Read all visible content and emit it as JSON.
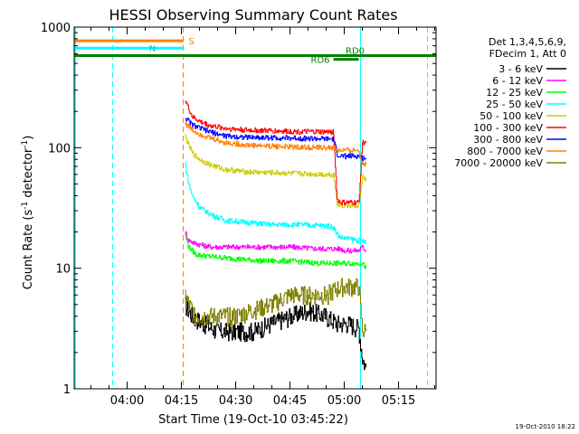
{
  "chart_data": {
    "type": "line",
    "title": "HESSI Observing Summary Count Rates",
    "xlabel": "Start Time (19-Oct-10 03:45:22)",
    "ylabel": "Count Rate (s",
    "ylabel_sup1": "-1",
    "ylabel_mid": " detector",
    "ylabel_sup2": "-1",
    "ylabel_end": ")",
    "y_scale": "log",
    "ylim": [
      1,
      1000
    ],
    "xlim": [
      "03:45:22",
      "05:25:22"
    ],
    "x_minutes_from": "03:45",
    "xlim_minutes": [
      0.37,
      100.37
    ],
    "x_ticks": [
      {
        "label": "04:00",
        "min": 15
      },
      {
        "label": "04:15",
        "min": 30
      },
      {
        "label": "04:30",
        "min": 45
      },
      {
        "label": "04:45",
        "min": 60
      },
      {
        "label": "05:00",
        "min": 75
      },
      {
        "label": "05:15",
        "min": 90
      }
    ],
    "y_ticks": [
      {
        "label": "1",
        "value": 1
      },
      {
        "label": "10",
        "value": 10
      },
      {
        "label": "100",
        "value": 100
      },
      {
        "label": "1000",
        "value": 1000
      }
    ],
    "legend": {
      "placement": "right",
      "header_line1": "Det 1,3,4,5,6,9,",
      "header_line2": "FDecim 1, Att 0"
    },
    "series": [
      {
        "name": "3 - 6 keV",
        "color": "#000000",
        "x": [
          31,
          33,
          36,
          40,
          45,
          50,
          55,
          60,
          65,
          70,
          73,
          76,
          79,
          80,
          81
        ],
        "y": [
          5,
          4,
          3.5,
          3,
          3,
          3,
          3.5,
          4,
          4.5,
          4,
          3.5,
          3.5,
          3.2,
          1.8,
          1.5
        ]
      },
      {
        "name": "6 - 12 keV",
        "color": "#ff00ff",
        "x": [
          31,
          32,
          34,
          38,
          45,
          52,
          60,
          68,
          74,
          75,
          76,
          79,
          80,
          81
        ],
        "y": [
          20,
          17,
          16,
          15,
          15,
          15,
          15,
          14.5,
          14.5,
          14,
          14,
          14,
          15,
          14
        ]
      },
      {
        "name": "12 - 25 keV",
        "color": "#00ff00",
        "x": [
          31,
          32,
          34,
          38,
          45,
          52,
          60,
          68,
          74,
          75,
          76,
          79,
          80,
          81
        ],
        "y": [
          19,
          15,
          13,
          12.5,
          12,
          11.5,
          11.5,
          11,
          11,
          11,
          11,
          11,
          11,
          10
        ]
      },
      {
        "name": "25 - 50 keV",
        "color": "#00ffff",
        "x": [
          31,
          32,
          33,
          35,
          38,
          42,
          48,
          55,
          62,
          70,
          72,
          73,
          74,
          79,
          80,
          81
        ],
        "y": [
          75,
          50,
          40,
          32,
          28,
          25,
          24,
          23,
          23,
          22.5,
          22,
          19,
          18,
          17,
          17,
          16
        ]
      },
      {
        "name": "50 - 100 keV",
        "color": "#cccc00",
        "x": [
          31,
          32,
          33,
          35,
          38,
          42,
          48,
          55,
          62,
          70,
          72,
          73,
          74,
          79,
          80,
          81
        ],
        "y": [
          125,
          105,
          90,
          80,
          72,
          66,
          63,
          62,
          61,
          60,
          60,
          35,
          33,
          33,
          57,
          55
        ]
      },
      {
        "name": "100 - 300 keV",
        "color": "#ff0000",
        "x": [
          31,
          32,
          33,
          35,
          38,
          42,
          48,
          55,
          62,
          70,
          72,
          73,
          74,
          79,
          80,
          81
        ],
        "y": [
          250,
          210,
          180,
          165,
          152,
          145,
          140,
          138,
          136,
          135,
          135,
          37,
          35,
          35,
          110,
          110
        ]
      },
      {
        "name": "300 - 800 keV",
        "color": "#0000ff",
        "x": [
          31,
          32,
          33,
          35,
          38,
          42,
          48,
          55,
          62,
          70,
          72,
          73,
          74,
          79,
          80,
          81
        ],
        "y": [
          178,
          165,
          155,
          145,
          135,
          125,
          122,
          121,
          120,
          118,
          118,
          88,
          85,
          85,
          82,
          82
        ]
      },
      {
        "name": "800 - 7000 keV",
        "color": "#ff8000",
        "x": [
          31,
          32,
          33,
          35,
          38,
          42,
          48,
          55,
          62,
          70,
          72,
          73,
          74,
          79,
          80,
          81
        ],
        "y": [
          160,
          150,
          140,
          130,
          120,
          110,
          105,
          103,
          101,
          100,
          100,
          95,
          95,
          95,
          75,
          72
        ]
      },
      {
        "name": "7000 - 20000 keV",
        "color": "#808000",
        "x": [
          31,
          32,
          34,
          38,
          45,
          50,
          55,
          60,
          65,
          70,
          74,
          76,
          79,
          80,
          81
        ],
        "y": [
          6,
          5,
          4,
          4,
          4,
          4.5,
          5,
          6,
          6,
          6,
          7,
          7,
          7,
          3,
          3
        ]
      }
    ],
    "flags": [
      {
        "label": "S",
        "color": "#ff8000",
        "y": 770,
        "x_end": 30.5
      },
      {
        "label": "N",
        "color": "#00ffff",
        "y": 670,
        "x_end": 30.5
      },
      {
        "label": "RD6",
        "color": "#008000",
        "y": 540,
        "x_start": 72,
        "x_end": 79
      },
      {
        "label": "RD0",
        "color": "#008000",
        "y": 580,
        "x_start": 0.37,
        "x_end": 100.37
      }
    ],
    "vertical_lines": [
      {
        "x": 11,
        "color": "#00ffff",
        "style": "dashed"
      },
      {
        "x": 30.5,
        "color": "#ff8000",
        "style": "dashed"
      },
      {
        "x": 79.5,
        "color": "#00ffff",
        "style": "solid"
      },
      {
        "x": 98,
        "color": "#00ffff",
        "style": "dashed"
      }
    ]
  },
  "footer": {
    "timestamp": "19-Oct-2010 18:22"
  }
}
